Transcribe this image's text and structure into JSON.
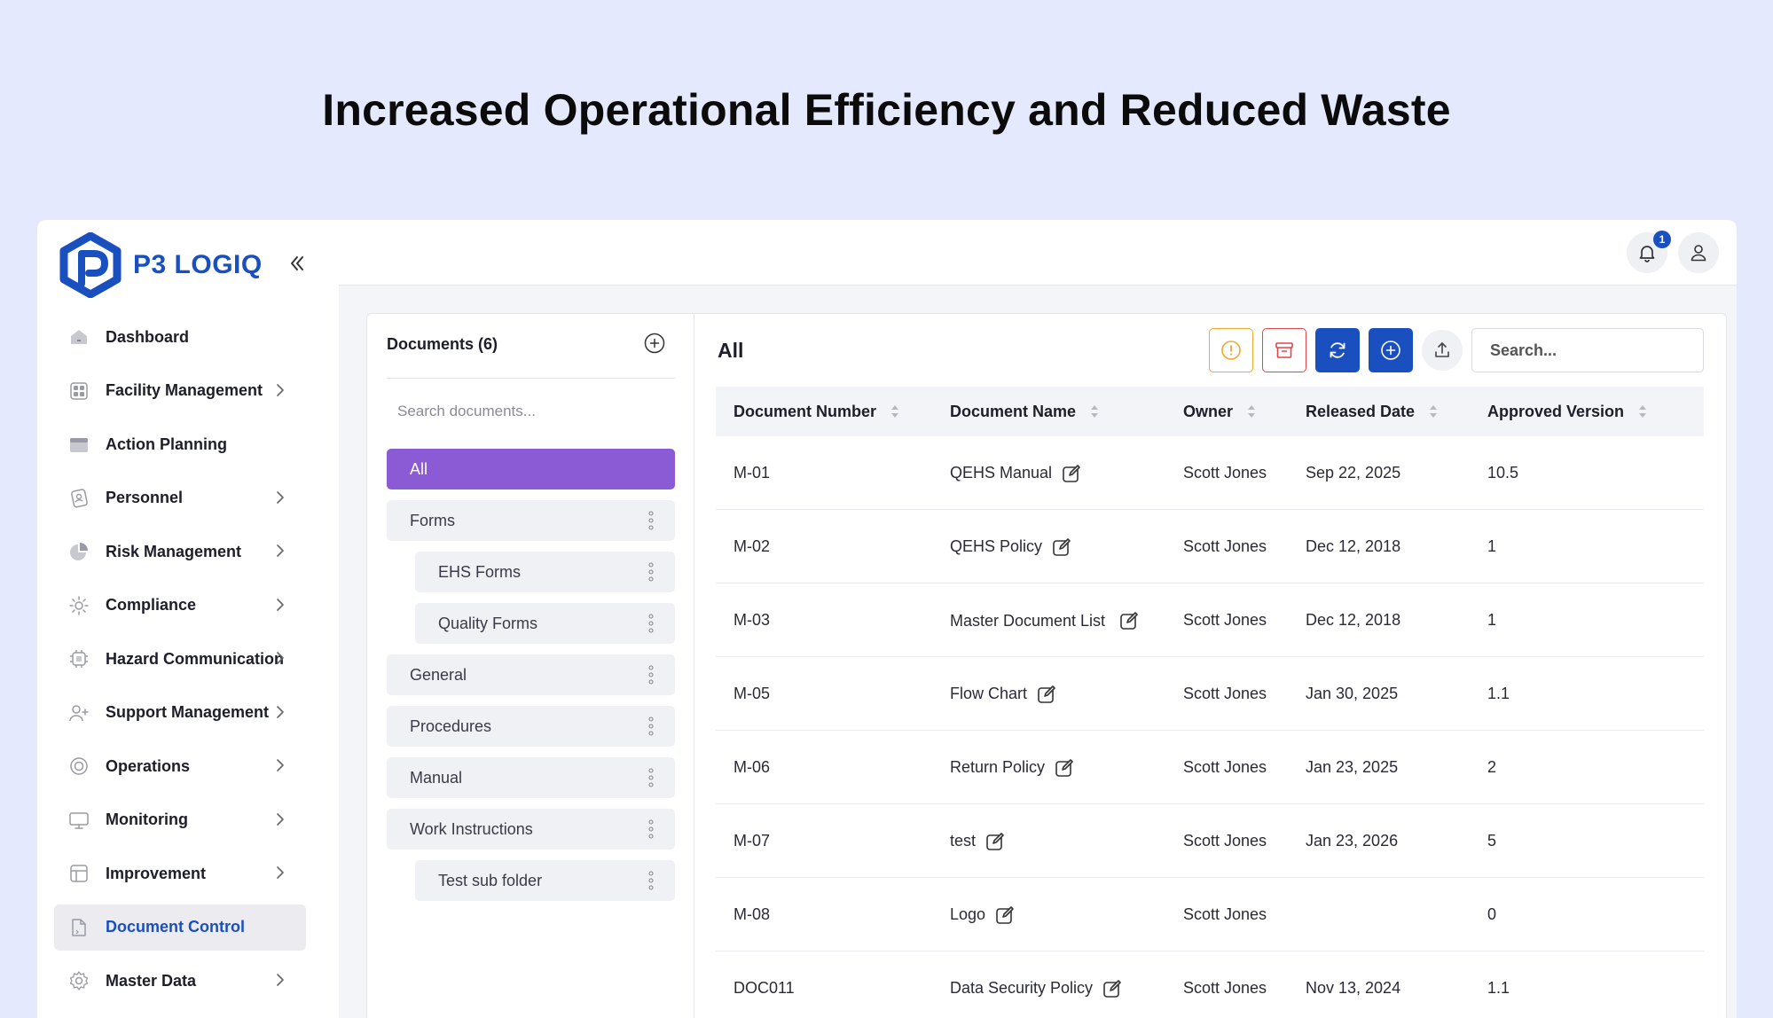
{
  "headline": "Increased Operational Efficiency and Reduced Waste",
  "brand": {
    "name": "P3 LOGIQ",
    "accent": "#1a4fbf"
  },
  "sidebar": {
    "items": [
      {
        "label": "Dashboard",
        "icon": "home-icon",
        "chevron": false,
        "active": false
      },
      {
        "label": "Facility Management",
        "icon": "grid-icon",
        "chevron": true,
        "active": false
      },
      {
        "label": "Action Planning",
        "icon": "calendar-icon",
        "chevron": false,
        "active": false
      },
      {
        "label": "Personnel",
        "icon": "id-badge-icon",
        "chevron": true,
        "active": false
      },
      {
        "label": "Risk Management",
        "icon": "pie-chart-icon",
        "chevron": true,
        "active": false
      },
      {
        "label": "Compliance",
        "icon": "sun-icon",
        "chevron": true,
        "active": false
      },
      {
        "label": "Hazard Communication",
        "icon": "chip-icon",
        "chevron": true,
        "active": false
      },
      {
        "label": "Support Management",
        "icon": "user-add-icon",
        "chevron": true,
        "active": false
      },
      {
        "label": "Operations",
        "icon": "target-icon",
        "chevron": true,
        "active": false
      },
      {
        "label": "Monitoring",
        "icon": "monitor-icon",
        "chevron": true,
        "active": false
      },
      {
        "label": "Improvement",
        "icon": "layout-icon",
        "chevron": true,
        "active": false
      },
      {
        "label": "Document Control",
        "icon": "document-icon",
        "chevron": false,
        "active": true
      },
      {
        "label": "Master Data",
        "icon": "gear-icon",
        "chevron": true,
        "active": false
      }
    ]
  },
  "topbar": {
    "notification_count": "1"
  },
  "documents": {
    "title": "Documents (6)",
    "search_placeholder": "Search documents...",
    "folders": [
      {
        "label": "All",
        "level": 0,
        "active": true
      },
      {
        "label": "Forms",
        "level": 0,
        "active": false
      },
      {
        "label": "EHS Forms",
        "level": 1,
        "active": false
      },
      {
        "label": "Quality Forms",
        "level": 1,
        "active": false
      },
      {
        "label": "General",
        "level": 0,
        "active": false
      },
      {
        "label": "Procedures",
        "level": 0,
        "active": false
      },
      {
        "label": "Manual",
        "level": 0,
        "active": false
      },
      {
        "label": "Work Instructions",
        "level": 0,
        "active": false
      },
      {
        "label": "Test sub folder",
        "level": 1,
        "active": false
      }
    ]
  },
  "content": {
    "title": "All",
    "search_placeholder": "Search...",
    "columns": [
      "Document Number",
      "Document Name",
      "Owner",
      "Released Date",
      "Approved Version"
    ],
    "rows": [
      {
        "number": "M-01",
        "name": "QEHS Manual",
        "owner": "Scott Jones",
        "released": "Sep 22, 2025",
        "version": "10.5"
      },
      {
        "number": "M-02",
        "name": "QEHS Policy",
        "owner": "Scott Jones",
        "released": "Dec 12, 2018",
        "version": "1"
      },
      {
        "number": "M-03",
        "name": "Master Document List",
        "owner": "Scott Jones",
        "released": "Dec 12, 2018",
        "version": "1"
      },
      {
        "number": "M-05",
        "name": "Flow Chart",
        "owner": "Scott Jones",
        "released": "Jan 30, 2025",
        "version": "1.1"
      },
      {
        "number": "M-06",
        "name": "Return Policy",
        "owner": "Scott Jones",
        "released": "Jan 23, 2025",
        "version": "2"
      },
      {
        "number": "M-07",
        "name": "test",
        "owner": "Scott Jones",
        "released": "Jan 23, 2026",
        "version": "5"
      },
      {
        "number": "M-08",
        "name": "Logo",
        "owner": "Scott Jones",
        "released": "",
        "version": "0"
      },
      {
        "number": "DOC011",
        "name": "Data Security Policy",
        "owner": "Scott Jones",
        "released": "Nov 13, 2024",
        "version": "1.1"
      }
    ]
  }
}
